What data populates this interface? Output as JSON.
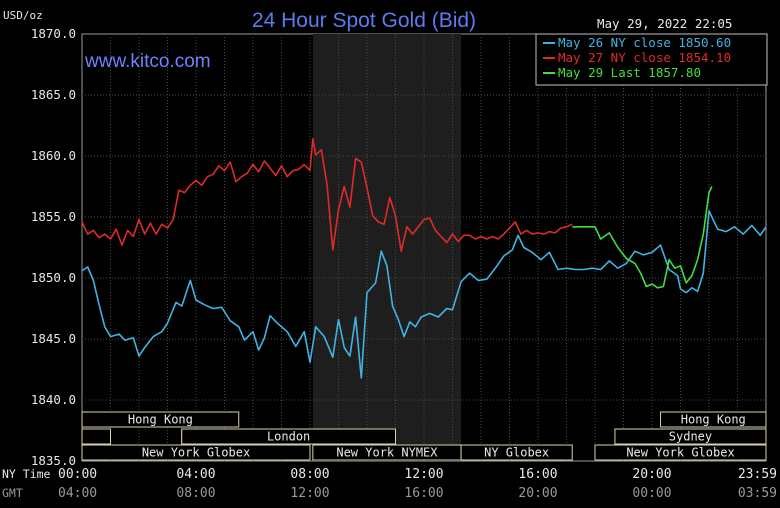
{
  "chart_data": {
    "type": "line",
    "title": "24 Hour Spot Gold (Bid)",
    "ylabel": "USD/oz",
    "timestamp": "May 29, 2022 22:05",
    "watermark": "www.kitco.com",
    "ylim": [
      1835,
      1870
    ],
    "yticks": [
      "1870.0",
      "1865.0",
      "1860.0",
      "1855.0",
      "1850.0",
      "1845.0",
      "1840.0",
      "1835.0"
    ],
    "xlim": [
      0,
      24
    ],
    "grid": true,
    "legend_position": "top-right",
    "x_rows": [
      {
        "label": "NY Time",
        "ticks": [
          "00:00",
          "04:00",
          "08:00",
          "12:00",
          "16:00",
          "20:00",
          "23:59"
        ]
      },
      {
        "label": "GMT",
        "ticks": [
          "04:00",
          "08:00",
          "12:00",
          "16:00",
          "20:00",
          "00:00",
          "03:59"
        ]
      }
    ],
    "shaded_region": [
      8.1,
      13.3
    ],
    "sessions": [
      {
        "label": "Hong Kong",
        "start": 0,
        "end": 5.5,
        "row": 0
      },
      {
        "label": "Hong Kong",
        "start": 20.3,
        "end": 24,
        "row": 0
      },
      {
        "label": "",
        "start": 0,
        "end": 1,
        "row": 1
      },
      {
        "label": "",
        "start": 3.5,
        "end": 4.5,
        "row": 1
      },
      {
        "label": "London",
        "start": 3.5,
        "end": 11,
        "row": 1
      },
      {
        "label": "Sydney",
        "start": 18.7,
        "end": 24,
        "row": 1
      },
      {
        "label": "New York Globex",
        "start": 0,
        "end": 8,
        "row": 2
      },
      {
        "label": "New York NYMEX",
        "start": 8.1,
        "end": 13.3,
        "row": 2
      },
      {
        "label": "NY Globex",
        "start": 13.3,
        "end": 17.2,
        "row": 2
      },
      {
        "label": "New York Globex",
        "start": 18,
        "end": 24,
        "row": 2
      }
    ],
    "series": [
      {
        "name": "May 26 NY close 1850.60",
        "color": "#3fb4e4",
        "points": [
          [
            0,
            1850.6
          ],
          [
            0.2,
            1850.9
          ],
          [
            0.4,
            1849.8
          ],
          [
            0.6,
            1847.8
          ],
          [
            0.8,
            1846.0
          ],
          [
            1.0,
            1845.2
          ],
          [
            1.3,
            1845.4
          ],
          [
            1.5,
            1844.9
          ],
          [
            1.8,
            1845.1
          ],
          [
            2.0,
            1843.6
          ],
          [
            2.2,
            1844.3
          ],
          [
            2.5,
            1845.2
          ],
          [
            2.8,
            1845.6
          ],
          [
            3.0,
            1846.3
          ],
          [
            3.3,
            1848.0
          ],
          [
            3.5,
            1847.7
          ],
          [
            3.8,
            1849.8
          ],
          [
            4.0,
            1848.2
          ],
          [
            4.3,
            1847.8
          ],
          [
            4.6,
            1847.5
          ],
          [
            4.9,
            1847.6
          ],
          [
            5.2,
            1846.5
          ],
          [
            5.5,
            1846.0
          ],
          [
            5.7,
            1844.9
          ],
          [
            6.0,
            1845.6
          ],
          [
            6.2,
            1844.1
          ],
          [
            6.4,
            1845.1
          ],
          [
            6.6,
            1846.9
          ],
          [
            6.9,
            1846.2
          ],
          [
            7.2,
            1845.6
          ],
          [
            7.5,
            1844.4
          ],
          [
            7.8,
            1845.6
          ],
          [
            8.0,
            1843.1
          ],
          [
            8.2,
            1846.0
          ],
          [
            8.5,
            1845.2
          ],
          [
            8.8,
            1843.5
          ],
          [
            9.0,
            1846.6
          ],
          [
            9.2,
            1844.3
          ],
          [
            9.4,
            1843.6
          ],
          [
            9.6,
            1846.8
          ],
          [
            9.8,
            1841.8
          ],
          [
            10.0,
            1848.8
          ],
          [
            10.3,
            1849.6
          ],
          [
            10.5,
            1852.2
          ],
          [
            10.7,
            1851.0
          ],
          [
            10.9,
            1847.7
          ],
          [
            11.1,
            1846.6
          ],
          [
            11.3,
            1845.2
          ],
          [
            11.5,
            1846.4
          ],
          [
            11.7,
            1846.0
          ],
          [
            11.9,
            1846.8
          ],
          [
            12.2,
            1847.1
          ],
          [
            12.5,
            1846.8
          ],
          [
            12.8,
            1847.5
          ],
          [
            13.0,
            1847.4
          ],
          [
            13.3,
            1849.7
          ],
          [
            13.6,
            1850.4
          ],
          [
            13.9,
            1849.8
          ],
          [
            14.2,
            1849.9
          ],
          [
            14.5,
            1850.8
          ],
          [
            14.8,
            1851.8
          ],
          [
            15.1,
            1852.3
          ],
          [
            15.3,
            1853.5
          ],
          [
            15.5,
            1852.5
          ],
          [
            15.8,
            1852.1
          ],
          [
            16.1,
            1851.5
          ],
          [
            16.4,
            1852.1
          ],
          [
            16.7,
            1850.7
          ],
          [
            17.0,
            1850.8
          ],
          [
            17.3,
            1850.7
          ],
          [
            17.6,
            1850.7
          ],
          [
            17.9,
            1850.8
          ],
          [
            18.2,
            1850.7
          ],
          [
            18.5,
            1851.4
          ],
          [
            18.8,
            1850.8
          ],
          [
            19.1,
            1851.2
          ],
          [
            19.4,
            1852.2
          ],
          [
            19.7,
            1851.9
          ],
          [
            20.0,
            1852.1
          ],
          [
            20.3,
            1852.7
          ],
          [
            20.6,
            1850.7
          ],
          [
            20.9,
            1850.2
          ],
          [
            21.0,
            1849.1
          ],
          [
            21.2,
            1848.8
          ],
          [
            21.4,
            1849.2
          ],
          [
            21.6,
            1848.9
          ],
          [
            21.8,
            1850.4
          ],
          [
            22.0,
            1855.5
          ],
          [
            22.3,
            1854.0
          ],
          [
            22.6,
            1853.8
          ],
          [
            22.9,
            1854.2
          ],
          [
            23.2,
            1853.6
          ],
          [
            23.5,
            1854.3
          ],
          [
            23.8,
            1853.5
          ],
          [
            24.0,
            1854.2
          ]
        ]
      },
      {
        "name": "May 27 NY close 1854.10",
        "color": "#e02a2a",
        "points": [
          [
            0,
            1854.6
          ],
          [
            0.2,
            1853.6
          ],
          [
            0.4,
            1853.9
          ],
          [
            0.6,
            1853.3
          ],
          [
            0.8,
            1853.6
          ],
          [
            1.0,
            1853.2
          ],
          [
            1.2,
            1854.0
          ],
          [
            1.4,
            1852.7
          ],
          [
            1.6,
            1853.9
          ],
          [
            1.8,
            1853.4
          ],
          [
            2.0,
            1854.8
          ],
          [
            2.2,
            1853.6
          ],
          [
            2.4,
            1854.5
          ],
          [
            2.6,
            1853.6
          ],
          [
            2.8,
            1854.4
          ],
          [
            3.0,
            1854.1
          ],
          [
            3.2,
            1854.8
          ],
          [
            3.4,
            1857.2
          ],
          [
            3.6,
            1857.0
          ],
          [
            3.8,
            1857.6
          ],
          [
            4.0,
            1858.0
          ],
          [
            4.2,
            1857.6
          ],
          [
            4.4,
            1858.3
          ],
          [
            4.6,
            1858.5
          ],
          [
            4.8,
            1859.2
          ],
          [
            5.0,
            1858.8
          ],
          [
            5.2,
            1859.5
          ],
          [
            5.4,
            1857.9
          ],
          [
            5.6,
            1858.3
          ],
          [
            5.8,
            1858.6
          ],
          [
            6.0,
            1859.3
          ],
          [
            6.2,
            1858.7
          ],
          [
            6.4,
            1859.6
          ],
          [
            6.6,
            1859.0
          ],
          [
            6.8,
            1858.4
          ],
          [
            7.0,
            1859.2
          ],
          [
            7.2,
            1858.3
          ],
          [
            7.4,
            1858.8
          ],
          [
            7.6,
            1858.9
          ],
          [
            7.8,
            1859.3
          ],
          [
            8.0,
            1858.8
          ],
          [
            8.1,
            1861.4
          ],
          [
            8.2,
            1860.1
          ],
          [
            8.4,
            1860.5
          ],
          [
            8.6,
            1857.6
          ],
          [
            8.8,
            1852.3
          ],
          [
            9.0,
            1855.6
          ],
          [
            9.2,
            1857.5
          ],
          [
            9.4,
            1855.8
          ],
          [
            9.6,
            1859.8
          ],
          [
            9.8,
            1859.5
          ],
          [
            10.0,
            1857.4
          ],
          [
            10.2,
            1855.1
          ],
          [
            10.4,
            1854.6
          ],
          [
            10.6,
            1854.4
          ],
          [
            10.8,
            1856.6
          ],
          [
            11.0,
            1855.1
          ],
          [
            11.2,
            1852.2
          ],
          [
            11.4,
            1854.2
          ],
          [
            11.6,
            1853.6
          ],
          [
            11.8,
            1854.2
          ],
          [
            12.0,
            1854.8
          ],
          [
            12.2,
            1854.9
          ],
          [
            12.4,
            1853.9
          ],
          [
            12.6,
            1853.4
          ],
          [
            12.8,
            1852.9
          ],
          [
            13.0,
            1853.6
          ],
          [
            13.2,
            1853.0
          ],
          [
            13.4,
            1853.5
          ],
          [
            13.6,
            1853.5
          ],
          [
            13.8,
            1853.2
          ],
          [
            14.0,
            1853.4
          ],
          [
            14.2,
            1853.2
          ],
          [
            14.4,
            1853.4
          ],
          [
            14.6,
            1853.2
          ],
          [
            14.8,
            1853.6
          ],
          [
            15.0,
            1854.1
          ],
          [
            15.2,
            1854.6
          ],
          [
            15.4,
            1853.6
          ],
          [
            15.6,
            1853.9
          ],
          [
            15.8,
            1853.6
          ],
          [
            16.0,
            1853.7
          ],
          [
            16.2,
            1853.6
          ],
          [
            16.4,
            1853.8
          ],
          [
            16.6,
            1853.7
          ],
          [
            16.8,
            1854.1
          ],
          [
            17.0,
            1854.2
          ],
          [
            17.2,
            1854.4
          ]
        ]
      },
      {
        "name": "May 29 Last 1857.80",
        "color": "#3ee03e",
        "points": [
          [
            17.2,
            1854.2
          ],
          [
            17.6,
            1854.2
          ],
          [
            18.0,
            1854.2
          ],
          [
            18.2,
            1853.2
          ],
          [
            18.5,
            1853.7
          ],
          [
            18.8,
            1852.5
          ],
          [
            19.1,
            1851.6
          ],
          [
            19.4,
            1851.2
          ],
          [
            19.6,
            1850.4
          ],
          [
            19.8,
            1849.3
          ],
          [
            20.0,
            1849.5
          ],
          [
            20.2,
            1849.2
          ],
          [
            20.4,
            1849.3
          ],
          [
            20.6,
            1851.5
          ],
          [
            20.8,
            1850.8
          ],
          [
            21.0,
            1851.0
          ],
          [
            21.2,
            1849.6
          ],
          [
            21.4,
            1850.2
          ],
          [
            21.6,
            1851.5
          ],
          [
            21.8,
            1853.6
          ],
          [
            22.0,
            1857.0
          ],
          [
            22.1,
            1857.5
          ]
        ]
      }
    ]
  }
}
